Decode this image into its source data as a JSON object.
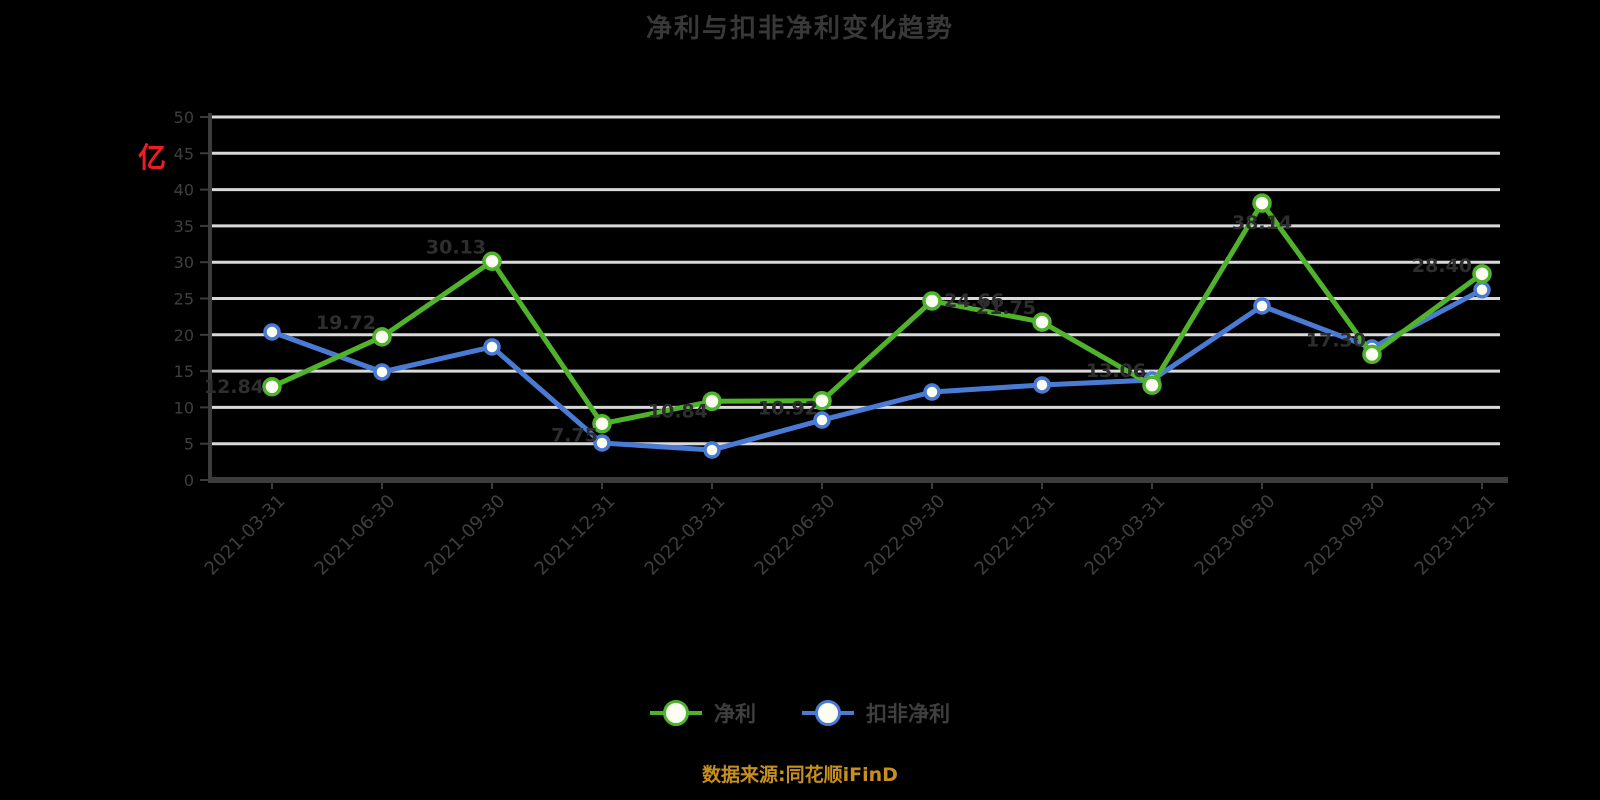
{
  "title": "净利与扣非净利变化趋势",
  "y_axis_unit": "亿",
  "footer_note": "数据来源:同花顺iFinD",
  "colors": {
    "background": "#000000",
    "grid": "#d9d9d9",
    "axis": "#3c3c3c",
    "muted_text": "#3f3f3f",
    "unit_red": "#ee1c25",
    "footer_orange": "#c68f1e",
    "series_green": "#4fb32b",
    "series_blue": "#4a7bd4",
    "marker_fill": "#fdfdf2",
    "data_label": "#2e2e2e"
  },
  "legend": {
    "items": [
      {
        "label": "净利",
        "color": "#4fb32b"
      },
      {
        "label": "扣非净利",
        "color": "#4a7bd4"
      }
    ]
  },
  "chart_data": {
    "type": "line",
    "title": "净利与扣非净利变化趋势",
    "xlabel": "",
    "ylabel": "亿",
    "ylim": [
      0,
      50
    ],
    "yticks": [
      0,
      5,
      10,
      15,
      20,
      25,
      30,
      35,
      40,
      45,
      50
    ],
    "grid": true,
    "legend_position": "bottom",
    "categories": [
      "2021-03-31",
      "2021-06-30",
      "2021-09-30",
      "2021-12-31",
      "2022-03-31",
      "2022-06-30",
      "2022-09-30",
      "2022-12-31",
      "2023-03-31",
      "2023-06-30",
      "2023-09-30",
      "2023-12-31"
    ],
    "series": [
      {
        "name": "净利",
        "color": "#4fb32b",
        "point_labels": true,
        "values": [
          12.84,
          19.72,
          30.13,
          7.75,
          10.84,
          10.92,
          24.66,
          21.75,
          13.06,
          38.14,
          17.3,
          28.4
        ]
      },
      {
        "name": "扣非净利",
        "color": "#4a7bd4",
        "point_labels": false,
        "values": [
          20.39,
          14.88,
          18.32,
          5.1,
          4.13,
          8.26,
          12.12,
          13.09,
          13.77,
          23.97,
          18.18,
          26.2
        ]
      }
    ]
  }
}
